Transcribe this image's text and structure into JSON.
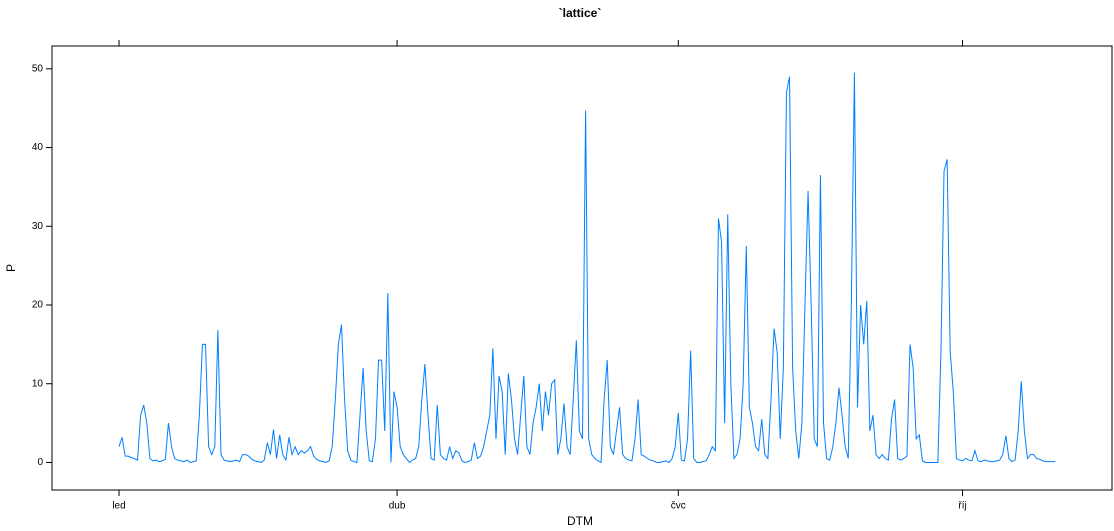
{
  "chart_data": {
    "type": "line",
    "title": "`lattice`",
    "x_label": "DTM",
    "y_label": "P",
    "categories": [
      "led",
      null,
      null,
      null,
      null,
      null,
      null,
      null,
      null,
      null,
      null,
      null,
      null,
      null,
      null,
      null,
      null,
      null,
      null,
      null,
      null,
      null,
      null,
      null,
      null,
      null,
      null,
      null,
      null,
      null,
      null,
      null,
      null,
      null,
      null,
      null,
      null,
      null,
      null,
      null,
      null,
      null,
      null,
      null,
      null,
      null,
      null,
      null,
      null,
      null,
      null,
      null,
      null,
      null,
      null,
      null,
      null,
      null,
      null,
      null,
      null,
      null,
      null,
      null,
      null,
      null,
      null,
      null,
      null,
      null,
      null,
      null,
      null,
      null,
      null,
      null,
      null,
      null,
      null,
      null,
      null,
      null,
      null,
      null,
      null,
      null,
      null,
      null,
      null,
      null,
      "dub",
      null,
      null,
      null,
      null,
      null,
      null,
      null,
      null,
      null,
      null,
      null,
      null,
      null,
      null,
      null,
      null,
      null,
      null,
      null,
      null,
      null,
      null,
      null,
      null,
      null,
      null,
      null,
      null,
      null,
      null,
      null,
      null,
      null,
      null,
      null,
      null,
      null,
      null,
      null,
      null,
      null,
      null,
      null,
      null,
      null,
      null,
      null,
      null,
      null,
      null,
      null,
      null,
      null,
      null,
      null,
      null,
      null,
      null,
      null,
      null,
      null,
      null,
      null,
      null,
      null,
      null,
      null,
      null,
      null,
      null,
      null,
      null,
      null,
      null,
      null,
      null,
      null,
      null,
      null,
      null,
      null,
      null,
      null,
      null,
      null,
      null,
      null,
      null,
      null,
      null,
      "čvc",
      null,
      null,
      null,
      null,
      null,
      null,
      null,
      null,
      null,
      null,
      null,
      null,
      null,
      null,
      null,
      null,
      null,
      null,
      null,
      null,
      null,
      null,
      null,
      null,
      null,
      null,
      null,
      null,
      null,
      null,
      null,
      null,
      null,
      null,
      null,
      null,
      null,
      null,
      null,
      null,
      null,
      null,
      null,
      null,
      null,
      null,
      null,
      null,
      null,
      null,
      null,
      null,
      null,
      null,
      null,
      null,
      null,
      null,
      null,
      null,
      null,
      null,
      null,
      null,
      null,
      null,
      null,
      null,
      null,
      null,
      null,
      null,
      null,
      null,
      null,
      null,
      null,
      null,
      null,
      null,
      null,
      null,
      null,
      null,
      null,
      null,
      null,
      null,
      null,
      null,
      null,
      "říj",
      null,
      null,
      null,
      null,
      null,
      null,
      null,
      null,
      null,
      null,
      null,
      null,
      null,
      null,
      null,
      null,
      null,
      null,
      null,
      null,
      null,
      null,
      null,
      null,
      null,
      null,
      null,
      null,
      null,
      null
    ],
    "values": [
      2,
      3.2,
      0.8,
      0.8,
      0.6,
      0.5,
      0.3,
      6,
      7.3,
      5,
      0.5,
      0.2,
      0.3,
      0.1,
      0.2,
      0.4,
      5,
      2,
      0.5,
      0.3,
      0.2,
      0.1,
      0.3,
      0,
      0.1,
      0.2,
      6,
      15,
      15,
      2,
      1,
      2,
      16.8,
      1,
      0.3,
      0.2,
      0.1,
      0.2,
      0.3,
      0.1,
      1,
      1,
      0.8,
      0.4,
      0.2,
      0.1,
      0,
      0.3,
      2.5,
      1,
      4.2,
      0.5,
      3.5,
      1,
      0.3,
      3.2,
      1,
      2,
      1,
      1.5,
      1.2,
      1.5,
      2,
      0.8,
      0.4,
      0.2,
      0.1,
      0,
      0.2,
      2,
      8,
      15,
      17.5,
      8,
      1.5,
      0.3,
      0.1,
      0,
      6,
      12,
      4,
      0.2,
      0.1,
      3,
      13,
      13,
      4,
      21.5,
      0,
      9,
      7,
      2,
      1,
      0.5,
      0,
      0.3,
      0.5,
      2,
      8,
      12.5,
      6,
      0.5,
      0.3,
      7.3,
      1,
      0.5,
      0.3,
      2,
      0.5,
      1.5,
      1.2,
      0.2,
      0,
      0.1,
      0.3,
      2.5,
      0.5,
      0.8,
      2,
      4,
      6,
      14.5,
      3,
      11,
      9,
      1,
      11.3,
      8,
      3,
      1,
      6,
      11,
      2,
      1,
      5,
      7,
      10,
      4,
      9,
      6,
      10,
      10.5,
      1,
      3,
      7.5,
      2,
      1,
      8,
      15.5,
      4,
      3,
      44.7,
      3,
      1,
      0.5,
      0.2,
      0,
      8,
      13,
      2,
      1,
      4,
      7,
      1,
      0.5,
      0.3,
      0.2,
      3,
      8,
      1,
      0.8,
      0.5,
      0.3,
      0.2,
      0,
      0,
      0.1,
      0.2,
      0,
      0.5,
      2,
      6.3,
      0.3,
      0.2,
      3,
      14.2,
      0.5,
      0,
      0,
      0.1,
      0.2,
      1,
      2,
      1.5,
      31,
      28,
      5,
      31.5,
      10,
      0.5,
      1,
      3,
      10,
      27.5,
      7,
      5,
      2,
      1.5,
      5.5,
      1,
      0.5,
      8,
      17,
      14,
      3,
      12,
      47,
      49,
      12,
      4,
      0.5,
      5,
      20,
      34.5,
      20,
      3,
      2,
      36.5,
      5,
      0.5,
      0.3,
      2,
      5,
      9.5,
      6,
      2,
      0.5,
      20,
      49.5,
      7,
      20,
      15,
      20.5,
      4,
      6,
      1,
      0.5,
      1,
      0.5,
      0.3,
      5.5,
      8,
      0.5,
      0.3,
      0.5,
      0.8,
      15,
      12,
      3,
      3.5,
      0.2,
      0,
      0,
      0,
      0,
      0,
      14,
      37,
      38.5,
      14,
      9,
      0.5,
      0.3,
      0.2,
      0.5,
      0.3,
      0.2,
      1.5,
      0.2,
      0.1,
      0.3,
      0.2,
      0.1,
      0.1,
      0.2,
      0.3,
      1,
      3.4,
      0.5,
      0.1,
      0.3,
      4,
      10.3,
      4,
      0.5,
      1,
      1,
      0.5,
      0.4,
      0.2,
      0.1,
      0.1,
      0.1,
      0.1
    ],
    "color": "#0080ff",
    "ylim": [
      -3.5,
      52.9
    ],
    "yticks": [
      0,
      10,
      20,
      30,
      40,
      50
    ]
  }
}
